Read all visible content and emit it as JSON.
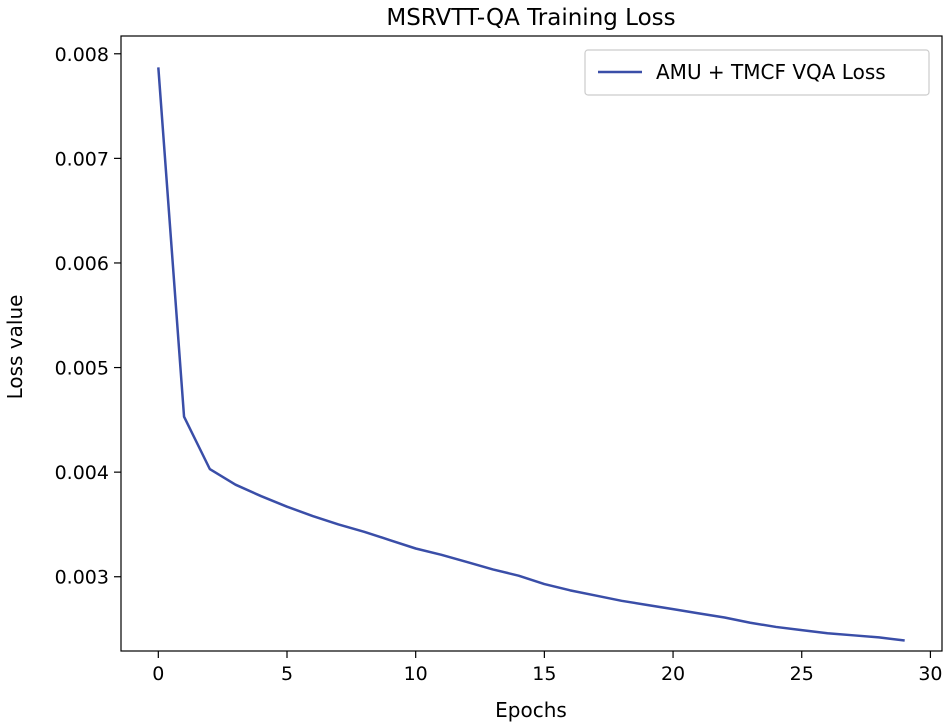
{
  "chart_data": {
    "type": "line",
    "title": "MSRVTT-QA Training Loss",
    "xlabel": "Epochs",
    "ylabel": "Loss value",
    "xlim": [
      -1.45,
      30.45
    ],
    "ylim": [
      0.00229,
      0.00817
    ],
    "xticks": [
      0,
      5,
      10,
      15,
      20,
      25,
      30
    ],
    "yticks": [
      0.003,
      0.004,
      0.005,
      0.006,
      0.007,
      0.008
    ],
    "ytick_labels": [
      "0.003",
      "0.004",
      "0.005",
      "0.006",
      "0.007",
      "0.008"
    ],
    "grid": false,
    "legend_position": "top-right",
    "series": [
      {
        "name": "AMU + TMCF VQA Loss",
        "color": "#3a4ea8",
        "x": [
          0,
          1,
          2,
          3,
          4,
          5,
          6,
          7,
          8,
          9,
          10,
          11,
          12,
          13,
          14,
          15,
          16,
          17,
          18,
          19,
          20,
          21,
          22,
          23,
          24,
          25,
          26,
          27,
          28,
          29
        ],
        "y": [
          0.00787,
          0.00453,
          0.00403,
          0.00388,
          0.00377,
          0.00367,
          0.00358,
          0.0035,
          0.00343,
          0.00335,
          0.00327,
          0.00321,
          0.00314,
          0.00307,
          0.00301,
          0.00293,
          0.00287,
          0.00282,
          0.00277,
          0.00273,
          0.00269,
          0.00265,
          0.00261,
          0.00256,
          0.00252,
          0.00249,
          0.00246,
          0.00244,
          0.00242,
          0.00239
        ]
      }
    ]
  }
}
